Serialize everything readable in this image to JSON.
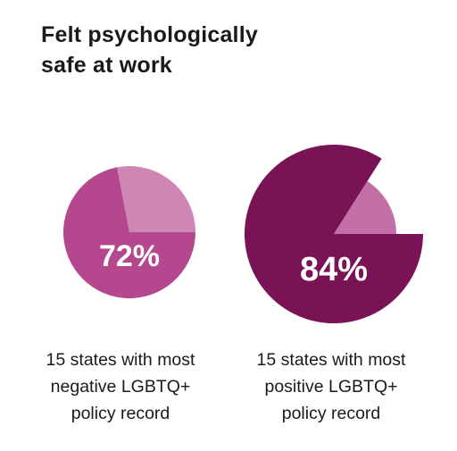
{
  "title": {
    "line1": "Felt psychologically",
    "line2": "safe at work"
  },
  "chart_data": [
    {
      "type": "pie",
      "value_label": "72%",
      "values": [
        72,
        28
      ],
      "colors": [
        "#b5478f",
        "#cf86b4"
      ],
      "caption": [
        "15 states with most",
        "negative LGBTQ+",
        "policy record"
      ]
    },
    {
      "type": "pie",
      "value_label": "84%",
      "values": [
        84,
        16
      ],
      "colors": [
        "#7a1256",
        "#c26fa5"
      ],
      "caption": [
        "15 states with most",
        "positive LGBTQ+",
        "policy record"
      ]
    }
  ]
}
